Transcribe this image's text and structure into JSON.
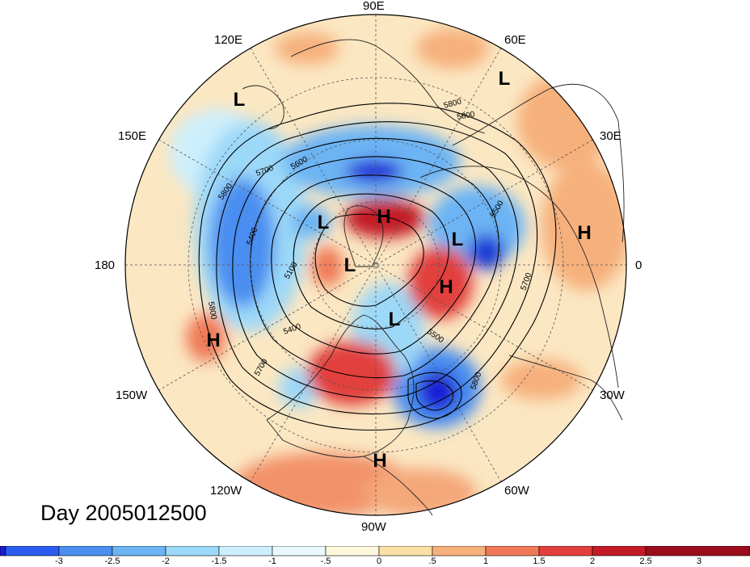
{
  "title": "Day 2005012500",
  "longitude_labels": {
    "n90e": "90E",
    "n60e": "60E",
    "n120e": "120E",
    "n30e": "30E",
    "n150e": "150E",
    "n0": "0",
    "n180": "180",
    "n30w": "30W",
    "n150w": "150W",
    "n60w": "60W",
    "n120w": "120W",
    "n90w": "90W"
  },
  "pressure_centers": [
    "L",
    "L",
    "L",
    "L",
    "L",
    "L",
    "H",
    "H",
    "H",
    "H",
    "H"
  ],
  "contour_labels": [
    "5800",
    "5700",
    "5600",
    "5800",
    "5400",
    "5100",
    "5400",
    "5800",
    "5700",
    "5500",
    "5800",
    "5500",
    "5700",
    "5800"
  ],
  "colorbar": {
    "ticks": [
      "-3",
      "-2.5",
      "-2",
      "-1.5",
      "-1",
      "-.5",
      "0",
      ".5",
      "1",
      "1.5",
      "2",
      "2.5",
      "3"
    ],
    "colors": [
      "#1a1ad6",
      "#2a5cf0",
      "#4a8ef0",
      "#6cb4f4",
      "#9cd8f8",
      "#cdeffc",
      "#eaf7fd",
      "#fdf8dc",
      "#fbe0a8",
      "#f6b07c",
      "#f07a58",
      "#e2403c",
      "#c31a26",
      "#9b0c1c"
    ]
  }
}
